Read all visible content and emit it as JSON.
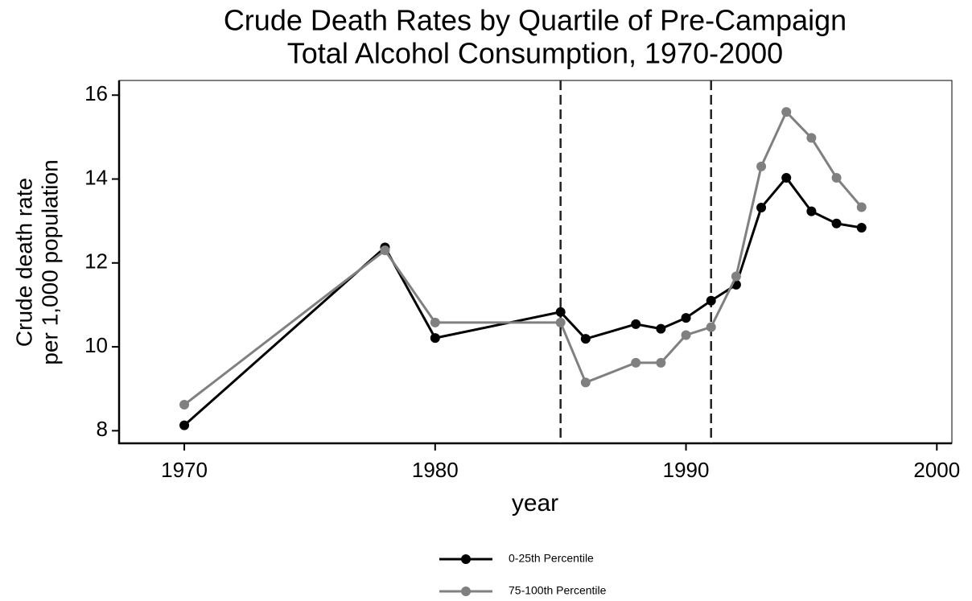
{
  "chart_data": {
    "type": "line",
    "title": [
      "Crude Death Rates by Quartile of Pre-Campaign",
      "Total Alcohol Consumption, 1970-2000"
    ],
    "xlabel": "year",
    "ylabel": [
      "Crude death rate",
      "per 1,000 population"
    ],
    "x": [
      1970,
      1978,
      1980,
      1985,
      1986,
      1988,
      1989,
      1990,
      1991,
      1992,
      1993,
      1994,
      1995,
      1996,
      1997
    ],
    "series": [
      {
        "name": "0-25th Percentile",
        "color": "#000000",
        "values": [
          8.13,
          12.37,
          10.21,
          10.83,
          10.19,
          10.54,
          10.43,
          10.69,
          11.1,
          11.48,
          13.32,
          14.03,
          13.23,
          12.94,
          12.84
        ]
      },
      {
        "name": "75-100th Percentile",
        "color": "#808080",
        "values": [
          8.62,
          12.3,
          10.58,
          10.58,
          9.15,
          9.62,
          9.62,
          10.28,
          10.47,
          11.68,
          14.3,
          15.6,
          14.98,
          14.03,
          13.33
        ]
      }
    ],
    "xlim": [
      1967.4,
      2000.6
    ],
    "xticks": [
      1970,
      1980,
      1990,
      2000
    ],
    "ylim": [
      7.7,
      16.35
    ],
    "yticks": [
      8,
      10,
      12,
      14,
      16
    ],
    "vlines": [
      1985,
      1991
    ],
    "legend": "bottom"
  }
}
